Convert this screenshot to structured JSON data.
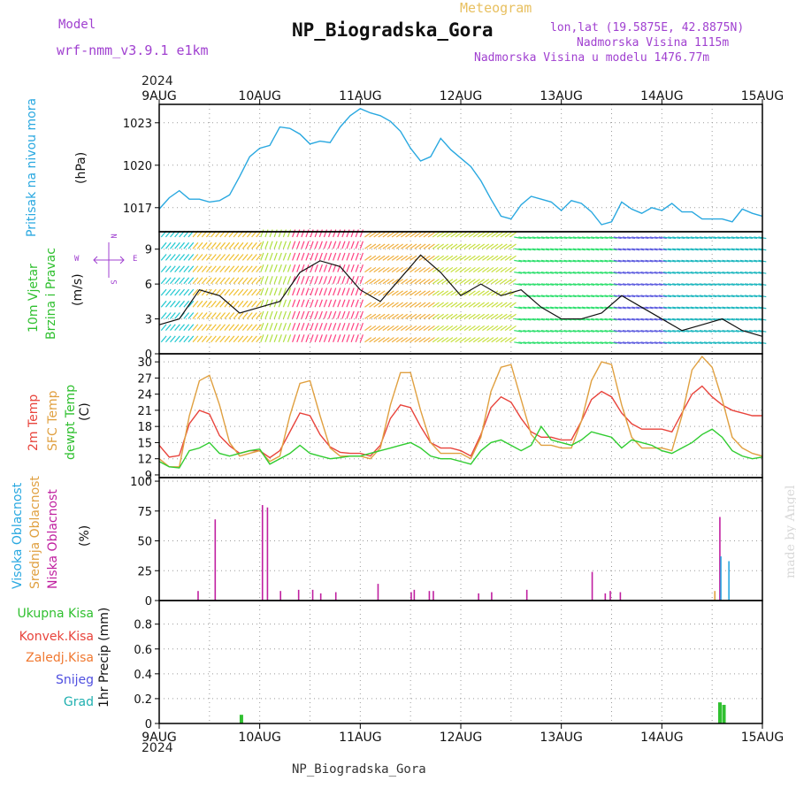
{
  "header": {
    "model_label": "Model",
    "model_name": "wrf-nmm_v3.9.1 e1km",
    "meteogram_label": "Meteogram",
    "station_title": "NP_Biogradska_Gora",
    "lonlat": "lon,lat (19.5875E, 42.8875N)",
    "elevation": "Nadmorska Visina 1115m",
    "model_elevation": "Nadmorska Visina u modelu 1476.77m",
    "footer_station": "NP_Biogradska_Gora",
    "credit": "made by Angel"
  },
  "time_axis": {
    "year_top": "2024",
    "year_bottom": "2024",
    "ticks": [
      "9AUG",
      "10AUG",
      "11AUG",
      "12AUG",
      "13AUG",
      "14AUG",
      "15AUG"
    ]
  },
  "panel_labels": {
    "pressure": [
      "Pritisak na nivou mora"
    ],
    "pressure_unit": "(hPa)",
    "wind": [
      "10m Vjetar",
      "Brzina i Pravac"
    ],
    "wind_unit": "(m/s)",
    "wind_compass": [
      "W",
      "E",
      "N",
      "S"
    ],
    "temp": [
      "2m Temp",
      "SFC Temp",
      "dewpt Temp"
    ],
    "temp_unit": "(C)",
    "cloud": [
      "Visoka Oblacnost",
      "Srednja Oblacnost",
      "Niska Oblacnost"
    ],
    "cloud_unit": "(%)",
    "precip": [
      "Ukupna Kisa",
      "Konvek.Kisa",
      "Zaledj.Kisa",
      "Snijeg",
      "Grad"
    ],
    "precip_unit": "1hr Precip (mm)"
  },
  "colors": {
    "pressure": "#29a8e0",
    "temp2m": "#e8443c",
    "sfc": "#e0a040",
    "dewpt": "#30cc30",
    "cloud_high": "#29a8e0",
    "cloud_mid": "#e0a040",
    "cloud_low": "#c020a0",
    "rain_total": "#30c030",
    "rain_conv": "#e8443c",
    "rain_frz": "#f07830",
    "snow": "#5050e0",
    "hail": "#20b0b0",
    "header_purple": "#a040d0",
    "meteogram_gold": "#e8c060"
  },
  "chart_data": [
    {
      "type": "line",
      "title": "",
      "ylabel": "Pritisak na nivou mora (hPa)",
      "x_unit": "days since 9AUG 00UTC",
      "ylim": [
        1015.3,
        1024.3
      ],
      "yticks": [
        1017,
        1020,
        1023
      ],
      "grid": true,
      "series": [
        {
          "name": "Pritisak na nivou mora",
          "x": [
            0,
            0.1,
            0.2,
            0.3,
            0.4,
            0.5,
            0.6,
            0.7,
            0.8,
            0.9,
            1.0,
            1.1,
            1.2,
            1.3,
            1.4,
            1.5,
            1.6,
            1.7,
            1.8,
            1.9,
            2.0,
            2.1,
            2.2,
            2.3,
            2.4,
            2.5,
            2.6,
            2.7,
            2.8,
            2.9,
            3.0,
            3.1,
            3.2,
            3.3,
            3.4,
            3.5,
            3.6,
            3.7,
            3.8,
            3.9,
            4.0,
            4.1,
            4.2,
            4.3,
            4.4,
            4.5,
            4.6,
            4.7,
            4.8,
            4.9,
            5.0,
            5.1,
            5.2,
            5.3,
            5.4,
            5.5,
            5.6,
            5.7,
            5.8,
            5.9,
            6.0
          ],
          "values": [
            1016.9,
            1017.7,
            1018.2,
            1017.6,
            1017.6,
            1017.4,
            1017.5,
            1017.9,
            1019.2,
            1020.6,
            1021.2,
            1021.4,
            1022.7,
            1022.6,
            1022.2,
            1021.5,
            1021.7,
            1021.6,
            1022.7,
            1023.5,
            1024.0,
            1023.7,
            1023.5,
            1023.1,
            1022.4,
            1021.2,
            1020.3,
            1020.6,
            1021.9,
            1021.1,
            1020.5,
            1019.9,
            1018.9,
            1017.6,
            1016.4,
            1016.2,
            1017.2,
            1017.8,
            1017.6,
            1017.4,
            1016.8,
            1017.5,
            1017.3,
            1016.7,
            1015.8,
            1016.0,
            1017.4,
            1016.9,
            1016.6,
            1017.0,
            1016.8,
            1017.3,
            1016.7,
            1016.7,
            1016.2,
            1016.2,
            1016.2,
            1016.0,
            1016.9,
            1016.6,
            1016.4
          ]
        }
      ]
    },
    {
      "type": "line",
      "title": "",
      "ylabel": "10m Vjetar Brzina i Pravac (m/s)",
      "x_unit": "days since 9AUG 00UTC",
      "ylim": [
        0,
        10.5
      ],
      "yticks": [
        0,
        3,
        6,
        9
      ],
      "grid": true,
      "series": [
        {
          "name": "10m Vjetar Brzina",
          "x": [
            0,
            0.2,
            0.4,
            0.6,
            0.8,
            1.0,
            1.2,
            1.4,
            1.6,
            1.8,
            2.0,
            2.2,
            2.4,
            2.6,
            2.8,
            3.0,
            3.2,
            3.4,
            3.6,
            3.8,
            4.0,
            4.2,
            4.4,
            4.6,
            4.8,
            5.0,
            5.2,
            5.4,
            5.6,
            5.8,
            6.0
          ],
          "values": [
            2.5,
            3.0,
            5.5,
            5.0,
            3.5,
            4.0,
            4.5,
            7.0,
            8.0,
            7.5,
            5.5,
            4.5,
            6.5,
            8.5,
            7.0,
            5.0,
            6.0,
            5.0,
            5.5,
            4.0,
            3.0,
            3.0,
            3.5,
            5.0,
            4.0,
            3.0,
            2.0,
            2.5,
            3.0,
            2.0,
            1.5
          ]
        }
      ]
    },
    {
      "type": "line",
      "title": "",
      "ylabel": "2m Temp / SFC Temp / dewpt Temp (C)",
      "x_unit": "days since 9AUG 00UTC",
      "ylim": [
        8.5,
        31.5
      ],
      "yticks": [
        9,
        12,
        15,
        18,
        21,
        24,
        27,
        30
      ],
      "grid": true,
      "series": [
        {
          "name": "2m Temp",
          "x": [
            0,
            0.1,
            0.2,
            0.3,
            0.4,
            0.5,
            0.6,
            0.7,
            0.8,
            0.9,
            1.0,
            1.1,
            1.2,
            1.3,
            1.4,
            1.5,
            1.6,
            1.7,
            1.8,
            1.9,
            2.0,
            2.1,
            2.2,
            2.3,
            2.4,
            2.5,
            2.6,
            2.7,
            2.8,
            2.9,
            3.0,
            3.1,
            3.2,
            3.3,
            3.4,
            3.5,
            3.6,
            3.7,
            3.8,
            3.9,
            4.0,
            4.1,
            4.2,
            4.3,
            4.4,
            4.5,
            4.6,
            4.7,
            4.8,
            4.9,
            5.0,
            5.1,
            5.2,
            5.3,
            5.4,
            5.5,
            5.6,
            5.7,
            5.8,
            5.9,
            6.0
          ],
          "values": [
            14.5,
            12.3,
            12.6,
            18.5,
            21.0,
            20.3,
            16.3,
            14.4,
            13.0,
            13.5,
            13.5,
            12.2,
            13.5,
            17.0,
            20.5,
            20.0,
            16.5,
            14.2,
            13.2,
            13.0,
            13.0,
            12.5,
            14.5,
            19.5,
            22.0,
            21.5,
            18.0,
            15.0,
            14.0,
            14.0,
            13.5,
            12.5,
            16.5,
            21.5,
            23.5,
            22.5,
            19.5,
            17.0,
            16.0,
            16.0,
            15.5,
            15.5,
            19.0,
            23.0,
            24.5,
            23.5,
            20.5,
            18.5,
            17.5,
            17.5,
            17.5,
            17.0,
            20.5,
            24.0,
            25.5,
            23.5,
            22.0,
            21.0,
            20.5,
            20.0,
            20.0
          ]
        },
        {
          "name": "SFC Temp",
          "x": [
            0,
            0.1,
            0.2,
            0.3,
            0.4,
            0.5,
            0.6,
            0.7,
            0.8,
            0.9,
            1.0,
            1.1,
            1.2,
            1.3,
            1.4,
            1.5,
            1.6,
            1.7,
            1.8,
            1.9,
            2.0,
            2.1,
            2.2,
            2.3,
            2.4,
            2.5,
            2.6,
            2.7,
            2.8,
            2.9,
            3.0,
            3.1,
            3.2,
            3.3,
            3.4,
            3.5,
            3.6,
            3.7,
            3.8,
            3.9,
            4.0,
            4.1,
            4.2,
            4.3,
            4.4,
            4.5,
            4.6,
            4.7,
            4.8,
            4.9,
            5.0,
            5.1,
            5.2,
            5.3,
            5.4,
            5.5,
            5.6,
            5.7,
            5.8,
            5.9,
            6.0
          ],
          "values": [
            12.0,
            10.5,
            10.5,
            20.0,
            26.5,
            27.5,
            22.0,
            15.0,
            12.5,
            13.0,
            13.5,
            11.5,
            12.5,
            20.0,
            26.0,
            26.5,
            20.0,
            14.0,
            12.5,
            12.5,
            12.5,
            12.0,
            14.0,
            22.0,
            28.0,
            28.0,
            21.0,
            15.0,
            13.0,
            13.0,
            13.0,
            12.0,
            16.0,
            24.5,
            29.0,
            29.5,
            23.0,
            16.5,
            14.5,
            14.5,
            14.0,
            14.0,
            19.0,
            26.5,
            30.0,
            29.5,
            22.0,
            16.0,
            14.0,
            14.0,
            14.0,
            13.5,
            20.0,
            28.5,
            31.0,
            29.0,
            23.0,
            16.0,
            14.0,
            13.0,
            12.5
          ]
        },
        {
          "name": "dewpt Temp",
          "x": [
            0,
            0.1,
            0.2,
            0.3,
            0.4,
            0.5,
            0.6,
            0.7,
            0.8,
            0.9,
            1.0,
            1.1,
            1.2,
            1.3,
            1.4,
            1.5,
            1.6,
            1.7,
            1.8,
            1.9,
            2.0,
            2.1,
            2.2,
            2.3,
            2.4,
            2.5,
            2.6,
            2.7,
            2.8,
            2.9,
            3.0,
            3.1,
            3.2,
            3.3,
            3.4,
            3.5,
            3.6,
            3.7,
            3.8,
            3.9,
            4.0,
            4.1,
            4.2,
            4.3,
            4.4,
            4.5,
            4.6,
            4.7,
            4.8,
            4.9,
            5.0,
            5.1,
            5.2,
            5.3,
            5.4,
            5.5,
            5.6,
            5.7,
            5.8,
            5.9,
            6.0
          ],
          "values": [
            11.5,
            10.5,
            10.3,
            13.5,
            14.0,
            15.0,
            13.0,
            12.5,
            13.0,
            13.5,
            13.8,
            11.0,
            12.0,
            13.0,
            14.5,
            13.0,
            12.5,
            12.0,
            12.2,
            12.5,
            12.5,
            13.0,
            13.5,
            14.0,
            14.5,
            15.0,
            14.0,
            12.5,
            12.0,
            12.0,
            11.5,
            11.0,
            13.5,
            15.0,
            15.5,
            14.5,
            13.5,
            14.5,
            18.0,
            15.5,
            15.0,
            14.5,
            15.5,
            17.0,
            16.5,
            16.0,
            14.0,
            15.5,
            15.0,
            14.5,
            13.5,
            13.0,
            14.0,
            15.0,
            16.5,
            17.5,
            16.0,
            13.5,
            12.5,
            12.0,
            12.3
          ]
        }
      ]
    },
    {
      "type": "bar",
      "title": "",
      "ylabel": "Visoka / Srednja / Niska Oblacnost (%)",
      "x_unit": "days since 9AUG 00UTC",
      "ylim": [
        0,
        103
      ],
      "yticks": [
        0,
        25,
        50,
        75,
        100
      ],
      "grid": true,
      "series": [
        {
          "name": "Niska Oblacnost",
          "x": [
            0.38,
            0.55,
            1.02,
            1.07,
            1.2,
            1.38,
            1.52,
            1.6,
            1.75,
            2.17,
            2.5,
            2.53,
            2.68,
            2.72,
            3.17,
            3.3,
            3.65,
            4.3,
            4.43,
            4.48,
            4.58,
            5.57
          ],
          "values": [
            8,
            68,
            80,
            78,
            8,
            9,
            9,
            6,
            7,
            14,
            7,
            9,
            8,
            8,
            6,
            7,
            9,
            24,
            6,
            8,
            7,
            70
          ]
        },
        {
          "name": "Visoka Oblacnost",
          "x": [
            5.58,
            5.66
          ],
          "values": [
            37,
            33
          ]
        },
        {
          "name": "Srednja Oblacnost",
          "x": [
            5.52
          ],
          "values": [
            8
          ]
        }
      ]
    },
    {
      "type": "bar",
      "title": "",
      "ylabel": "1hr Precip (mm)",
      "x_unit": "days since 9AUG 00UTC",
      "ylim": [
        0,
        0.99
      ],
      "yticks": [
        0,
        0.2,
        0.4,
        0.6,
        0.8
      ],
      "grid": true,
      "series": [
        {
          "name": "Ukupna Kisa",
          "x": [
            0.8,
            5.56,
            5.6
          ],
          "values": [
            0.07,
            0.17,
            0.15
          ]
        }
      ]
    }
  ]
}
